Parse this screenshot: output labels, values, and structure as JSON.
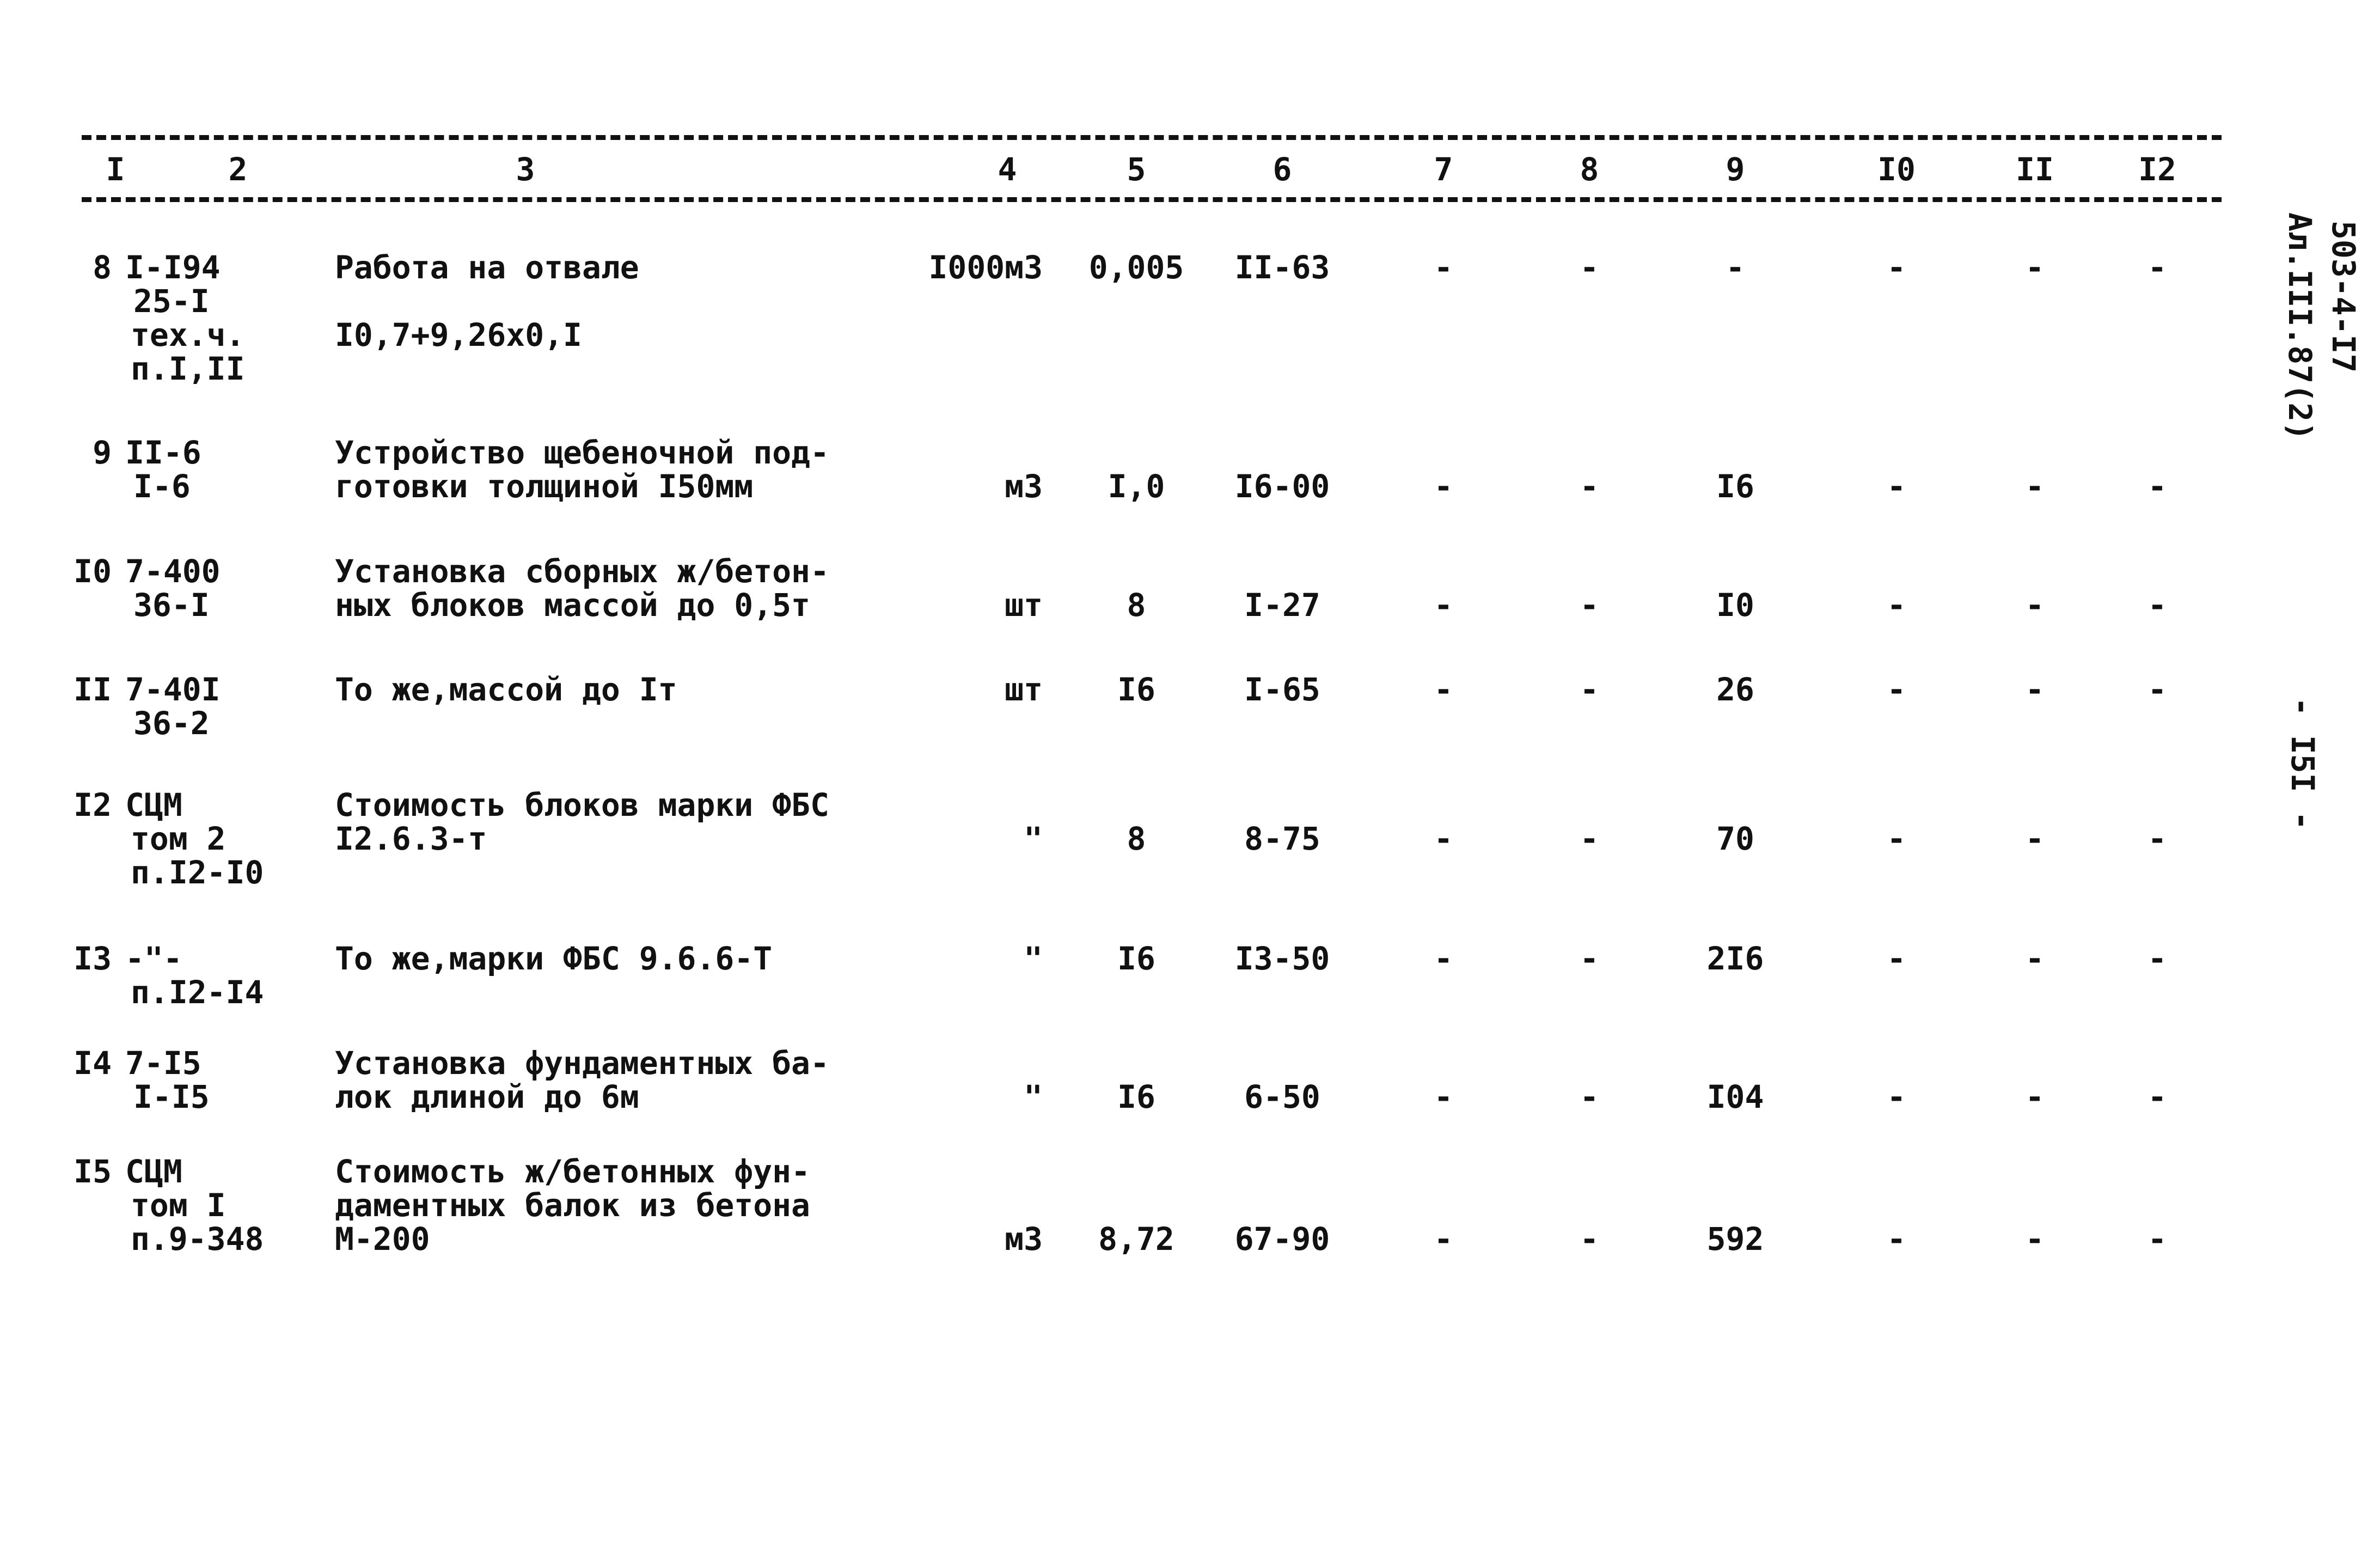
{
  "header": {
    "columns": [
      "I",
      "2",
      "3",
      "4",
      "5",
      "6",
      "7",
      "8",
      "9",
      "I0",
      "II",
      "I2"
    ]
  },
  "side": {
    "code": "503-4-I7",
    "album": "Ал.III.87(2)",
    "page": "- I5I -"
  },
  "rows": [
    {
      "num": "8",
      "ref": [
        "I-I94",
        "25-I",
        "тех.ч.",
        "п.I,II"
      ],
      "desc": [
        "Работа на отвале",
        "",
        "I0,7+9,26x0,I"
      ],
      "unit": "I000м3",
      "qty": "0,005",
      "price": "II-63",
      "c7": "-",
      "c8": "-",
      "c9": "-",
      "c10": "-",
      "c11": "-",
      "c12": "-",
      "vline": 0
    },
    {
      "num": "9",
      "ref": [
        "II-6",
        "I-6"
      ],
      "desc": [
        "Устройство щебеночной под-",
        "готовки толщиной I50мм"
      ],
      "unit": "м3",
      "qty": "I,0",
      "price": "I6-00",
      "c7": "-",
      "c8": "-",
      "c9": "I6",
      "c10": "-",
      "c11": "-",
      "c12": "-",
      "vline": 1
    },
    {
      "num": "I0",
      "ref": [
        "7-400",
        "36-I"
      ],
      "desc": [
        "Установка сборных ж/бетон-",
        "ных блоков массой до 0,5т"
      ],
      "unit": "шт",
      "qty": "8",
      "price": "I-27",
      "c7": "-",
      "c8": "-",
      "c9": "I0",
      "c10": "-",
      "c11": "-",
      "c12": "-",
      "vline": 1
    },
    {
      "num": "II",
      "ref": [
        "7-40I",
        "36-2"
      ],
      "desc": [
        "То же,массой до Iт"
      ],
      "unit": "шт",
      "qty": "I6",
      "price": "I-65",
      "c7": "-",
      "c8": "-",
      "c9": "26",
      "c10": "-",
      "c11": "-",
      "c12": "-",
      "vline": 0
    },
    {
      "num": "I2",
      "ref": [
        "СЦМ",
        "том 2",
        "п.I2-I0"
      ],
      "desc": [
        "Стоимость блоков марки ФБС",
        "I2.6.3-т"
      ],
      "unit": "\"",
      "qty": "8",
      "price": "8-75",
      "c7": "-",
      "c8": "-",
      "c9": "70",
      "c10": "-",
      "c11": "-",
      "c12": "-",
      "vline": 1
    },
    {
      "num": "I3",
      "ref": [
        "-\"-",
        "п.I2-I4"
      ],
      "desc": [
        "То же,марки ФБС 9.6.6-Т"
      ],
      "unit": "\"",
      "qty": "I6",
      "price": "I3-50",
      "c7": "-",
      "c8": "-",
      "c9": "2I6",
      "c10": "-",
      "c11": "-",
      "c12": "-",
      "vline": 0
    },
    {
      "num": "I4",
      "ref": [
        "7-I5",
        "I-I5"
      ],
      "desc": [
        "Установка фундаментных ба-",
        "лок длиной до 6м"
      ],
      "unit": "\"",
      "qty": "I6",
      "price": "6-50",
      "c7": "-",
      "c8": "-",
      "c9": "I04",
      "c10": "-",
      "c11": "-",
      "c12": "-",
      "vline": 1
    },
    {
      "num": "I5",
      "ref": [
        "СЦМ",
        "том I",
        "п.9-348"
      ],
      "desc": [
        "Стоимость ж/бетонных фун-",
        "даментных балок из бетона",
        "М-200"
      ],
      "unit": "м3",
      "qty": "8,72",
      "price": "67-90",
      "c7": "-",
      "c8": "-",
      "c9": "592",
      "c10": "-",
      "c11": "-",
      "c12": "-",
      "vline": 2
    }
  ]
}
